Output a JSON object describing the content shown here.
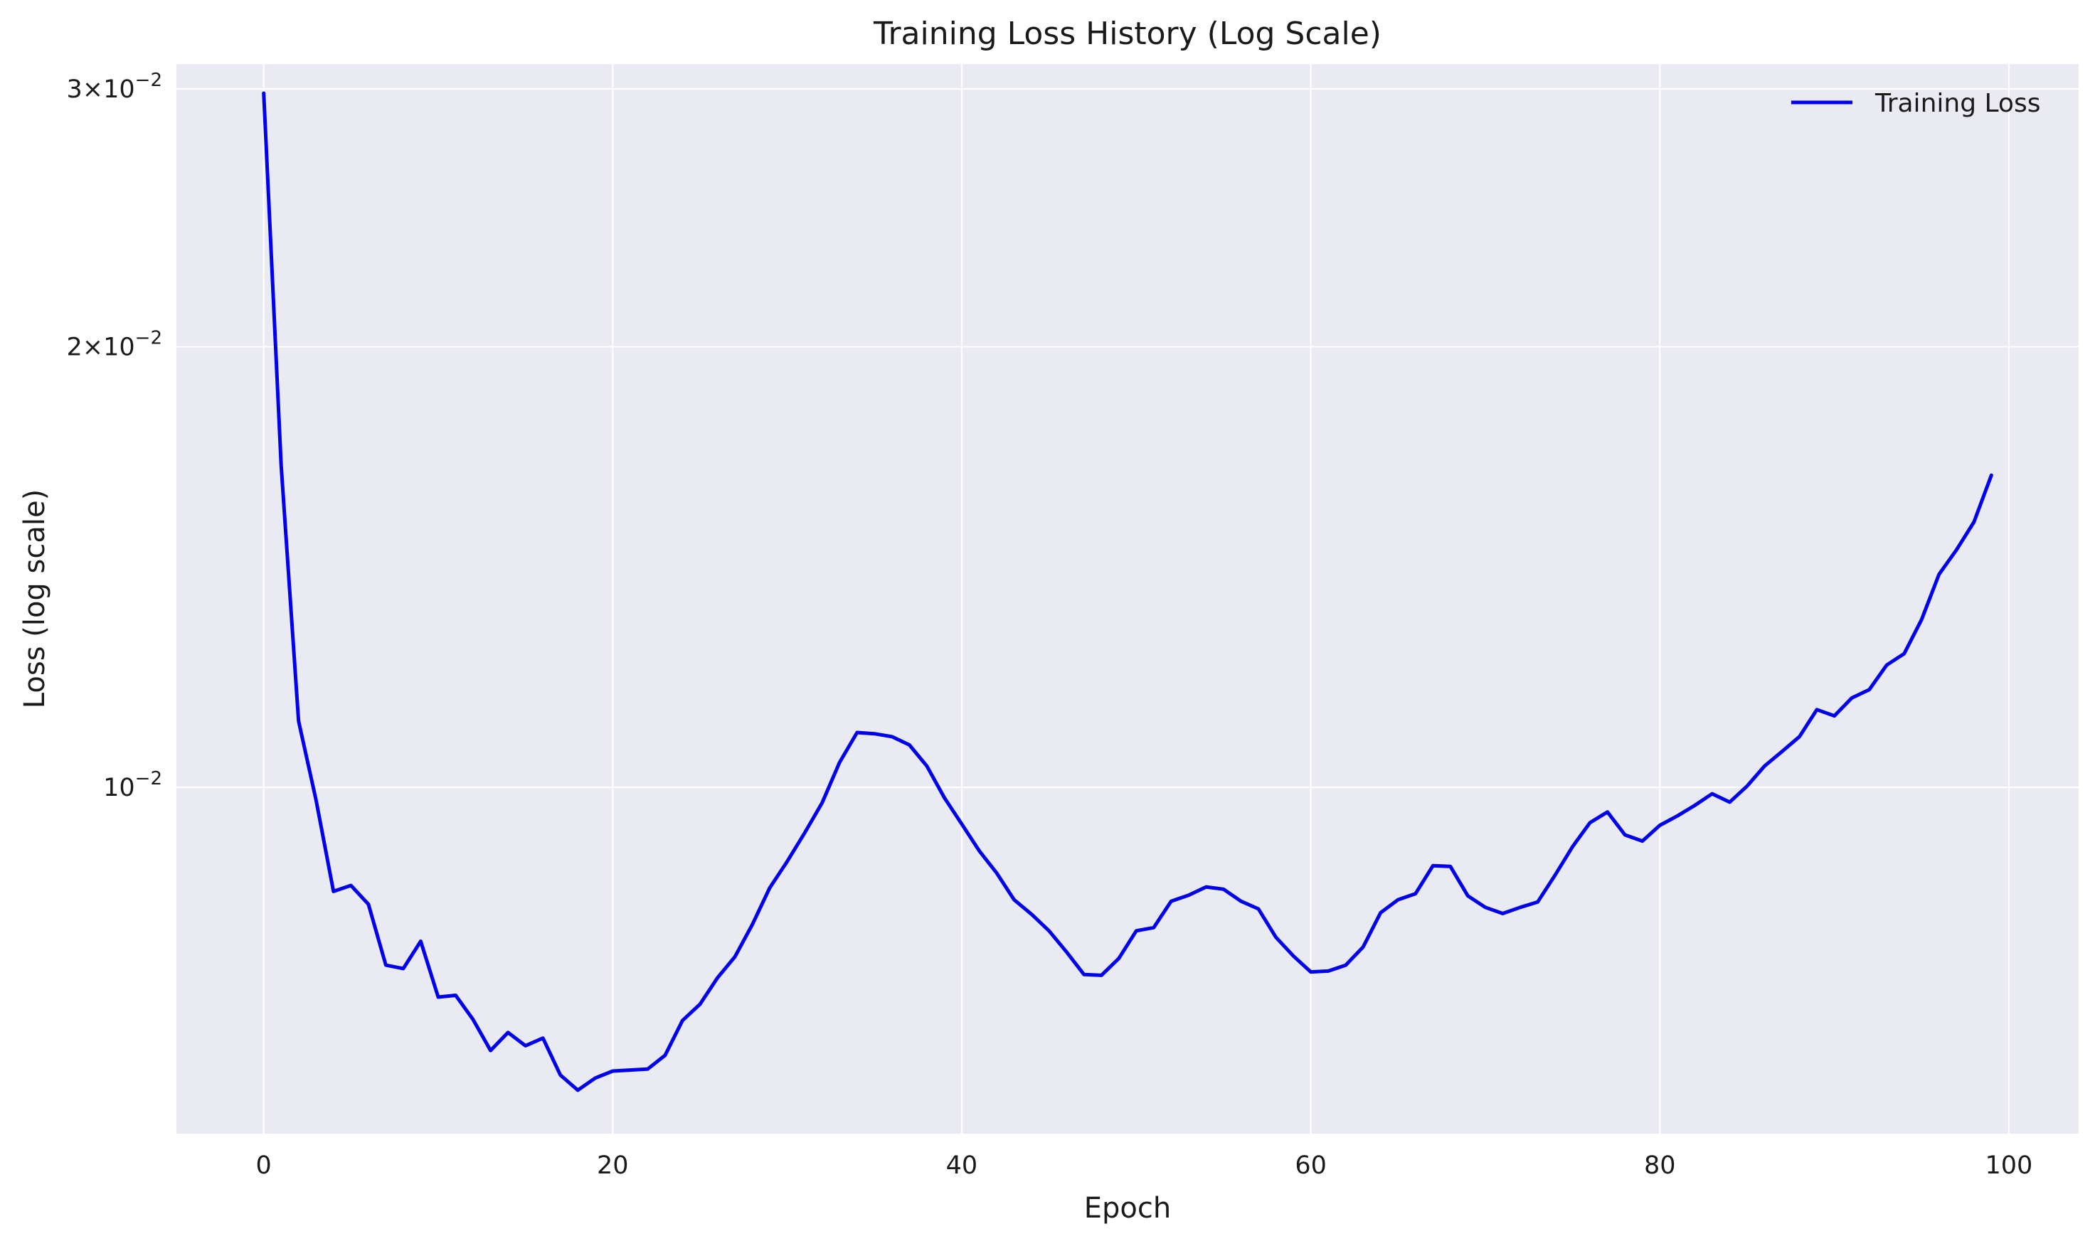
{
  "chart_data": {
    "type": "line",
    "title": "Training Loss History (Log Scale)",
    "xlabel": "Epoch",
    "ylabel": "Loss (log scale)",
    "yscale": "log",
    "xlim": [
      -5,
      104
    ],
    "ylim": [
      0.0058,
      0.0312
    ],
    "grid": true,
    "legend_position": "top-right",
    "background_color": "#eaeaf2",
    "grid_color": "#ffffff",
    "x_ticks": [
      {
        "value": 0,
        "label": "0"
      },
      {
        "value": 20,
        "label": "20"
      },
      {
        "value": 40,
        "label": "40"
      },
      {
        "value": 60,
        "label": "60"
      },
      {
        "value": 80,
        "label": "80"
      },
      {
        "value": 100,
        "label": "100"
      }
    ],
    "y_ticks": [
      {
        "value": 0.01,
        "mantissa": "10",
        "exponent": "−2"
      },
      {
        "value": 0.02,
        "mantissa": "2×10",
        "exponent": "−2"
      },
      {
        "value": 0.03,
        "mantissa": "3×10",
        "exponent": "−2"
      }
    ],
    "series": [
      {
        "name": "Training Loss",
        "color": "#0000ee",
        "x": [
          0,
          1,
          2,
          3,
          4,
          5,
          6,
          7,
          8,
          9,
          10,
          11,
          12,
          13,
          14,
          15,
          16,
          17,
          18,
          19,
          20,
          21,
          22,
          23,
          24,
          25,
          26,
          27,
          28,
          29,
          30,
          31,
          32,
          33,
          34,
          35,
          36,
          37,
          38,
          39,
          40,
          41,
          42,
          43,
          44,
          45,
          46,
          47,
          48,
          49,
          50,
          51,
          52,
          53,
          54,
          55,
          56,
          57,
          58,
          59,
          60,
          61,
          62,
          63,
          64,
          65,
          66,
          67,
          68,
          69,
          70,
          71,
          72,
          73,
          74,
          75,
          76,
          77,
          78,
          79,
          80,
          81,
          82,
          83,
          84,
          85,
          86,
          87,
          88,
          89,
          90,
          91,
          92,
          93,
          94,
          95,
          96,
          97,
          98,
          99
        ],
        "y": [
          0.0298,
          0.0166,
          0.0111,
          0.0098,
          0.00849,
          0.00857,
          0.00832,
          0.00756,
          0.00752,
          0.00785,
          0.00719,
          0.00721,
          0.00694,
          0.00661,
          0.0068,
          0.00666,
          0.00674,
          0.00636,
          0.00621,
          0.00633,
          0.0064,
          0.00641,
          0.00642,
          0.00656,
          0.00693,
          0.00711,
          0.00741,
          0.00766,
          0.00806,
          0.00854,
          0.0089,
          0.00931,
          0.00976,
          0.0104,
          0.0109,
          0.01088,
          0.01083,
          0.01069,
          0.01034,
          0.00984,
          0.00944,
          0.00905,
          0.00874,
          0.00838,
          0.00819,
          0.00798,
          0.00772,
          0.00745,
          0.00744,
          0.00764,
          0.00798,
          0.00802,
          0.00836,
          0.00844,
          0.00855,
          0.00852,
          0.00836,
          0.00826,
          0.0079,
          0.00767,
          0.00748,
          0.00749,
          0.00756,
          0.00778,
          0.00821,
          0.00838,
          0.00846,
          0.00884,
          0.00883,
          0.00843,
          0.00828,
          0.0082,
          0.00828,
          0.00835,
          0.00871,
          0.00911,
          0.00946,
          0.00962,
          0.00928,
          0.00919,
          0.00942,
          0.00956,
          0.00972,
          0.0099,
          0.00977,
          0.01002,
          0.01034,
          0.01058,
          0.01083,
          0.0113,
          0.01119,
          0.01151,
          0.01166,
          0.01212,
          0.01234,
          0.01302,
          0.01398,
          0.01453,
          0.01518,
          0.01634
        ]
      }
    ]
  }
}
